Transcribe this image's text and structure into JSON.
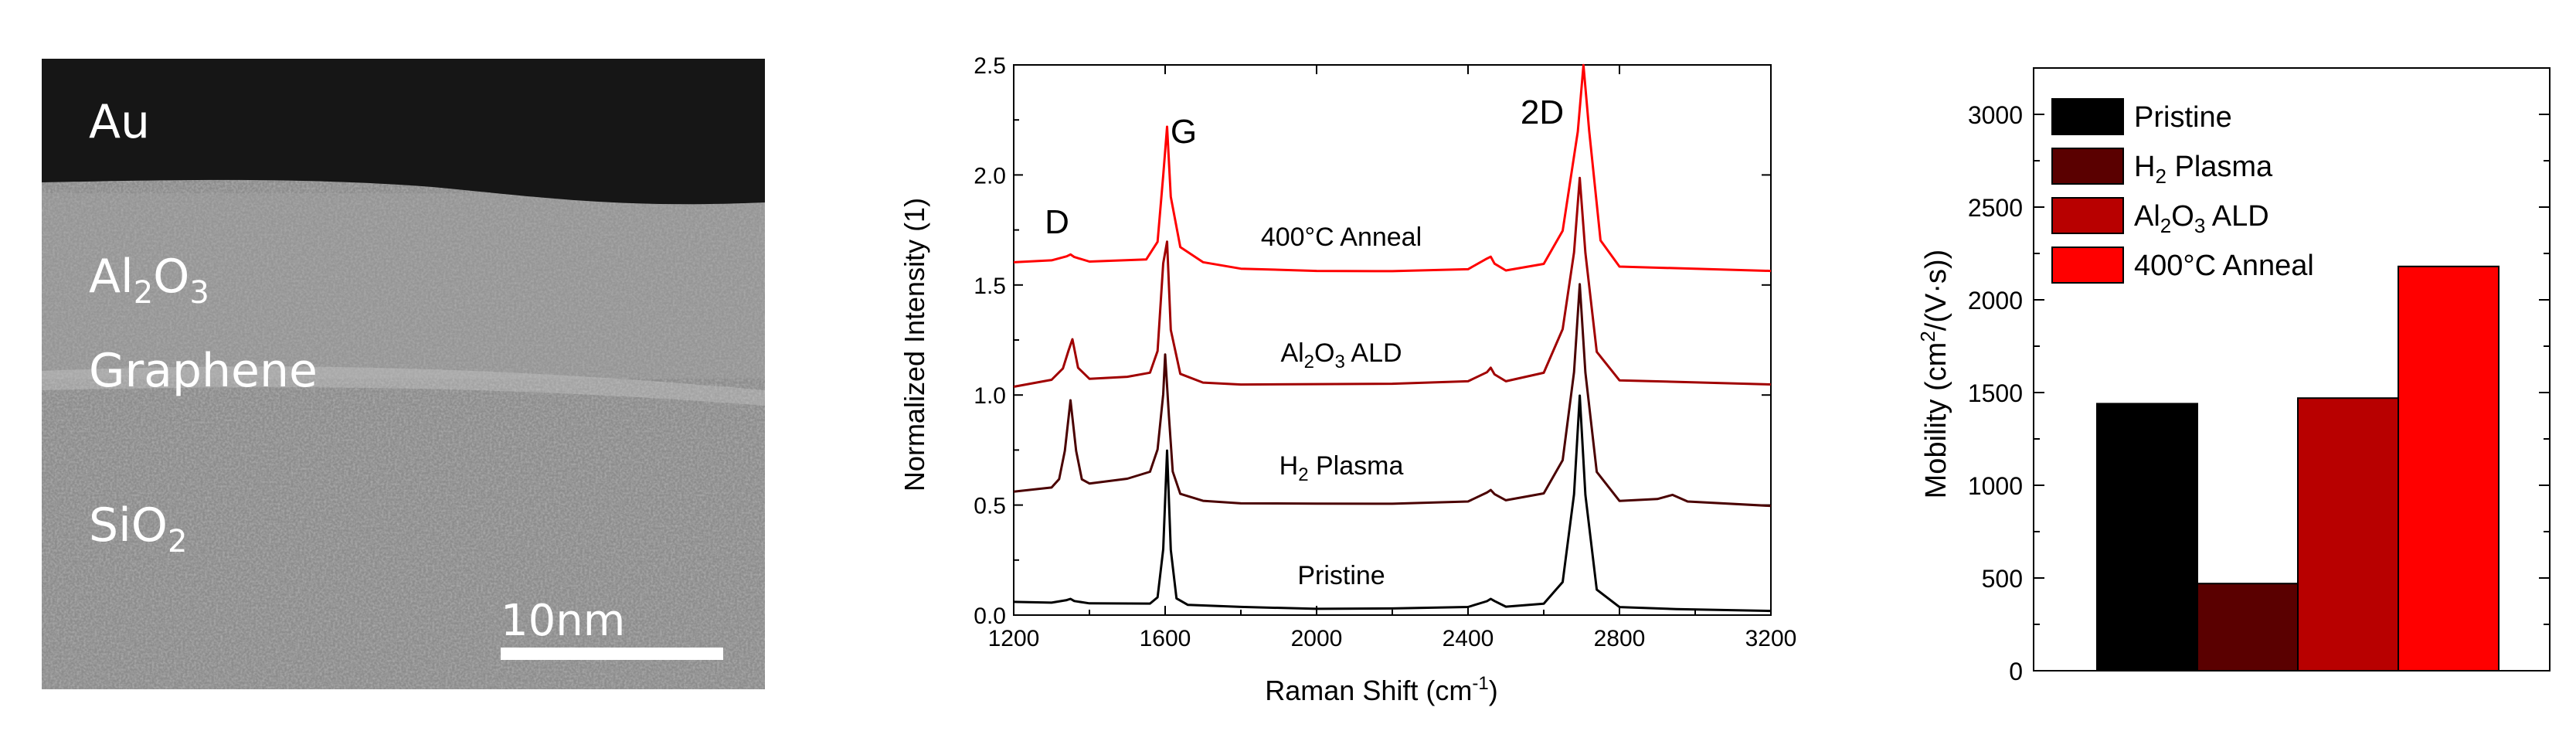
{
  "panel_a": {
    "layers": [
      {
        "text": "Au",
        "sub": ""
      },
      {
        "text": "Al",
        "sub": "2",
        "text2": "O",
        "sub2": "3"
      },
      {
        "text": "Graphene",
        "sub": ""
      },
      {
        "text": "SiO",
        "sub": "2"
      }
    ],
    "scale_bar_label": "10nm"
  },
  "chart_data": [
    {
      "type": "line",
      "xlabel": "Raman Shift (cm",
      "xlabel_sup": "-1",
      "xlabel_end": ")",
      "ylabel": "Normalized Intensity (1)",
      "xlim": [
        1200,
        3200
      ],
      "ylim": [
        0,
        2.5
      ],
      "xticks": [
        1200,
        1600,
        2000,
        2400,
        2800,
        3200
      ],
      "yticks": [
        0.0,
        0.5,
        1.0,
        1.5,
        2.0,
        2.5
      ],
      "peak_labels": [
        "D",
        "G",
        "2D"
      ],
      "series": [
        {
          "name": "Pristine",
          "offset": 0.0,
          "color": "#000000",
          "x": [
            1200,
            1300,
            1340,
            1350,
            1360,
            1400,
            1560,
            1580,
            1595,
            1605,
            1615,
            1630,
            1660,
            1800,
            2000,
            2200,
            2400,
            2450,
            2460,
            2470,
            2500,
            2600,
            2650,
            2680,
            2695,
            2710,
            2740,
            2800,
            2950,
            3200
          ],
          "y": [
            0.06,
            0.055,
            0.065,
            0.07,
            0.06,
            0.05,
            0.05,
            0.08,
            0.3,
            0.75,
            0.3,
            0.08,
            0.05,
            0.04,
            0.03,
            0.03,
            0.035,
            0.06,
            0.07,
            0.06,
            0.035,
            0.05,
            0.15,
            0.55,
            1.0,
            0.55,
            0.12,
            0.04,
            0.03,
            0.02
          ]
        },
        {
          "name": "H2 Plasma",
          "offset": 0.5,
          "color": "#4a0000",
          "x": [
            1200,
            1300,
            1320,
            1335,
            1350,
            1365,
            1380,
            1400,
            1500,
            1560,
            1580,
            1595,
            1600,
            1610,
            1620,
            1640,
            1700,
            1800,
            2000,
            2200,
            2400,
            2450,
            2460,
            2470,
            2500,
            2600,
            2650,
            2680,
            2695,
            2710,
            2740,
            2800,
            2900,
            2940,
            2980,
            3200
          ],
          "y": [
            0.56,
            0.58,
            0.62,
            0.75,
            0.98,
            0.75,
            0.62,
            0.6,
            0.62,
            0.65,
            0.75,
            1.0,
            1.18,
            0.9,
            0.65,
            0.55,
            0.52,
            0.51,
            0.51,
            0.51,
            0.52,
            0.56,
            0.57,
            0.55,
            0.52,
            0.55,
            0.7,
            1.1,
            1.5,
            1.1,
            0.65,
            0.52,
            0.53,
            0.55,
            0.52,
            0.5
          ]
        },
        {
          "name": "Al2O3 ALD",
          "offset": 1.0,
          "color": "#a00000",
          "x": [
            1200,
            1300,
            1330,
            1345,
            1355,
            1370,
            1400,
            1500,
            1560,
            1580,
            1595,
            1605,
            1615,
            1640,
            1700,
            1800,
            2000,
            2200,
            2400,
            2450,
            2460,
            2470,
            2500,
            2600,
            2650,
            2680,
            2695,
            2710,
            2740,
            2800,
            3200
          ],
          "y": [
            1.04,
            1.07,
            1.12,
            1.2,
            1.25,
            1.12,
            1.07,
            1.08,
            1.1,
            1.2,
            1.6,
            1.7,
            1.3,
            1.1,
            1.06,
            1.05,
            1.05,
            1.05,
            1.06,
            1.1,
            1.12,
            1.09,
            1.06,
            1.1,
            1.3,
            1.65,
            1.99,
            1.65,
            1.2,
            1.07,
            1.05
          ]
        },
        {
          "name": "400°C Anneal",
          "offset": 1.5,
          "color": "#ff0000",
          "x": [
            1200,
            1300,
            1340,
            1350,
            1360,
            1400,
            1550,
            1580,
            1595,
            1605,
            1615,
            1640,
            1700,
            1800,
            2000,
            2200,
            2400,
            2450,
            2460,
            2470,
            2500,
            2600,
            2650,
            2690,
            2705,
            2720,
            2750,
            2800,
            3200
          ],
          "y": [
            1.6,
            1.61,
            1.63,
            1.64,
            1.63,
            1.61,
            1.62,
            1.7,
            2.0,
            2.22,
            1.9,
            1.67,
            1.6,
            1.57,
            1.56,
            1.56,
            1.57,
            1.62,
            1.63,
            1.6,
            1.57,
            1.6,
            1.75,
            2.2,
            2.5,
            2.2,
            1.7,
            1.58,
            1.56
          ]
        }
      ],
      "curve_labels": [
        {
          "text": "Pristine",
          "sub": "",
          "tail": ""
        },
        {
          "text": "H",
          "sub": "2",
          "tail": " Plasma"
        },
        {
          "text": "Al",
          "sub": "2",
          "mid": "O",
          "sub2": "3",
          "tail": " ALD"
        },
        {
          "text": "400°C Anneal",
          "sub": "",
          "tail": ""
        }
      ]
    },
    {
      "type": "bar",
      "ylabel": "Mobility (cm",
      "ylabel_sup": "2",
      "ylabel_end": "/(V·s))",
      "ylim": [
        0,
        3250
      ],
      "yticks": [
        0,
        500,
        1000,
        1500,
        2000,
        2500,
        3000
      ],
      "categories": [
        "Pristine",
        "H2 Plasma",
        "Al2O3 ALD",
        "400°C Anneal"
      ],
      "values": [
        1440,
        470,
        1470,
        2180
      ],
      "colors": [
        "#000000",
        "#5a0000",
        "#b80000",
        "#ff0000"
      ],
      "legend": [
        {
          "text": "Pristine"
        },
        {
          "text": "H",
          "sub": "2",
          "tail": " Plasma"
        },
        {
          "text": "Al",
          "sub": "2",
          "mid": "O",
          "sub2": "3",
          "tail": " ALD"
        },
        {
          "text": "400°C Anneal"
        }
      ],
      "legend_position": "top-left"
    }
  ]
}
